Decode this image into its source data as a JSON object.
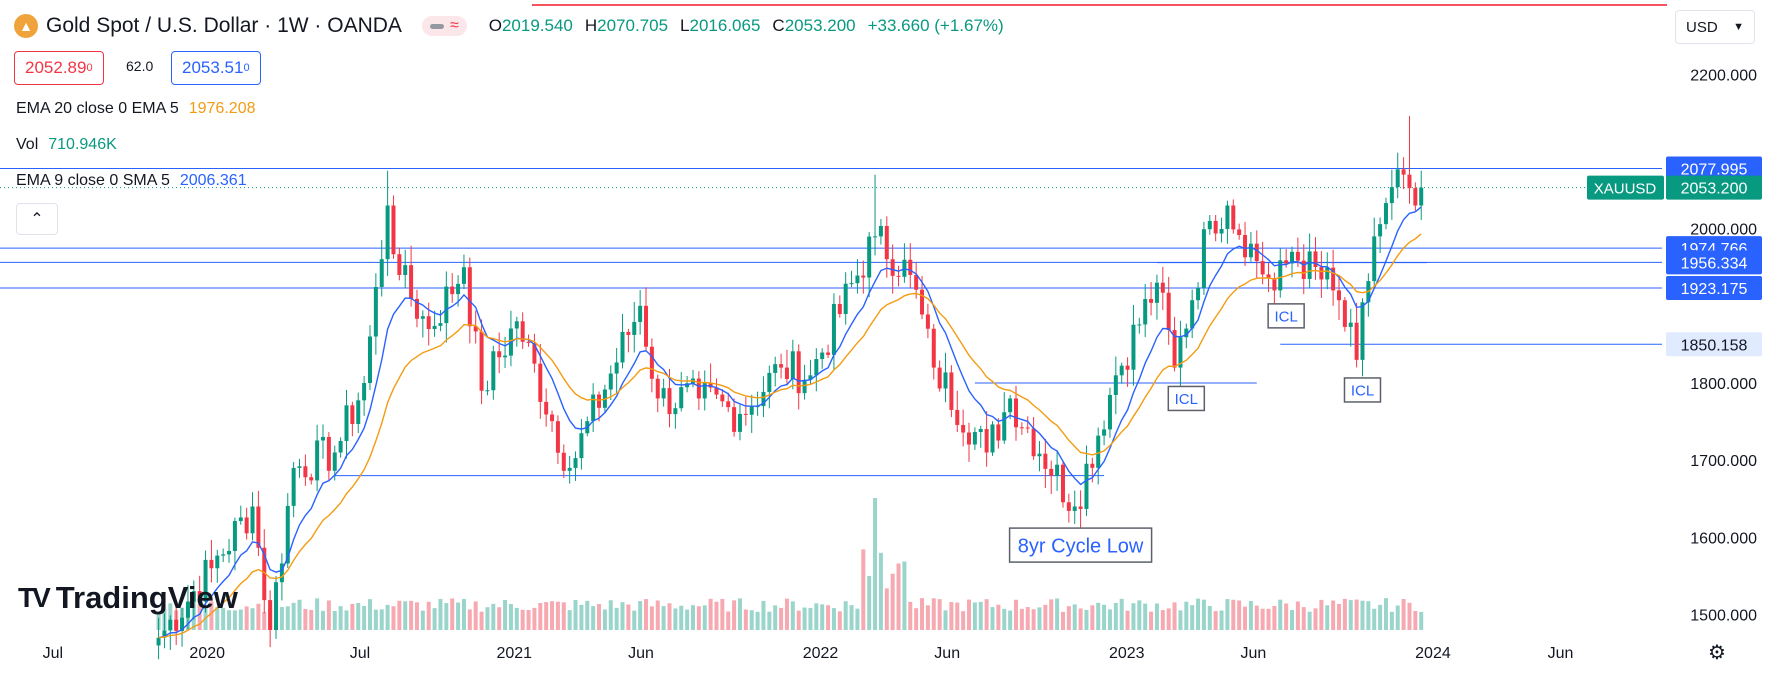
{
  "header": {
    "symbol_title": "Gold Spot / U.S. Dollar · 1W · OANDA",
    "logo_icon": "gold-coin-icon",
    "ohlc": [
      {
        "key": "O",
        "value": "2019.540"
      },
      {
        "key": "H",
        "value": "2070.705"
      },
      {
        "key": "L",
        "value": "2016.065"
      },
      {
        "key": "C",
        "value": "2053.200"
      }
    ],
    "change": "+33.660 (+1.67%)",
    "sell_price_main": "2052.89",
    "sell_price_sup": "0",
    "spread": "62.0",
    "buy_price_main": "2053.51",
    "buy_price_sup": "0"
  },
  "indicators": [
    {
      "label": "EMA 20 close 0 EMA 5",
      "value": "1976.208",
      "color": "#f39c12"
    },
    {
      "label": "Vol",
      "value": "710.946K",
      "color": "#089981"
    },
    {
      "label": "EMA 9 close 0 SMA 5",
      "value": "2006.361",
      "color": "#2962ff"
    }
  ],
  "currency": {
    "label": "USD",
    "icon": "chevron-down-icon"
  },
  "branding": {
    "name": "TradingView"
  },
  "colors": {
    "up": "#089981",
    "down": "#f23645",
    "ema_fast": "#2962ff",
    "ema_slow": "#f39c12",
    "hline": "#2962ff",
    "vol_up": "#9ad5cc",
    "vol_down": "#f6a9b0"
  },
  "chart_data": {
    "type": "candlestick",
    "title": "Gold Spot / U.S. Dollar · 1W · OANDA",
    "yaxis": {
      "ticks": [
        1500,
        1600,
        1700,
        1800,
        1900,
        2000,
        2100,
        2200
      ],
      "tick_labels": [
        "1500.000",
        "1600.000",
        "1700.000",
        "1800.000",
        "",
        "2000.000",
        "",
        "2200.000"
      ],
      "range": [
        1480,
        2225
      ]
    },
    "xaxis": {
      "ticks": [
        "2019-07",
        "2020-01",
        "2020-07",
        "2021-01",
        "2021-06",
        "2022-01",
        "2022-06",
        "2023-01",
        "2023-06",
        "2024-01",
        "2024-06"
      ],
      "tick_labels": [
        "Jul",
        "2020",
        "Jul",
        "2021",
        "Jun",
        "2022",
        "Jun",
        "2023",
        "Jun",
        "2024",
        "Jun"
      ],
      "range": [
        "2019-04-29",
        "2024-09-30"
      ]
    },
    "ohlc_anchors": [
      {
        "t": "2019-11-04",
        "c": 1470
      },
      {
        "t": "2020-01-06",
        "c": 1560
      },
      {
        "t": "2020-02-24",
        "c": 1640
      },
      {
        "t": "2020-03-16",
        "c": 1480
      },
      {
        "t": "2020-04-13",
        "c": 1690
      },
      {
        "t": "2020-06-01",
        "c": 1710
      },
      {
        "t": "2020-07-06",
        "c": 1800
      },
      {
        "t": "2020-08-03",
        "c": 2030
      },
      {
        "t": "2020-08-17",
        "c": 1940
      },
      {
        "t": "2020-09-21",
        "c": 1870
      },
      {
        "t": "2020-11-02",
        "c": 1950
      },
      {
        "t": "2020-11-23",
        "c": 1790
      },
      {
        "t": "2021-01-04",
        "c": 1880
      },
      {
        "t": "2021-03-08",
        "c": 1690
      },
      {
        "t": "2021-05-31",
        "c": 1900
      },
      {
        "t": "2021-06-21",
        "c": 1780
      },
      {
        "t": "2021-08-09",
        "c": 1780
      },
      {
        "t": "2021-09-27",
        "c": 1760
      },
      {
        "t": "2021-11-15",
        "c": 1820
      },
      {
        "t": "2021-12-20",
        "c": 1810
      },
      {
        "t": "2022-03-07",
        "c": 1990
      },
      {
        "t": "2022-04-18",
        "c": 1940
      },
      {
        "t": "2022-05-16",
        "c": 1820
      },
      {
        "t": "2022-07-18",
        "c": 1710
      },
      {
        "t": "2022-08-15",
        "c": 1780
      },
      {
        "t": "2022-10-31",
        "c": 1640
      },
      {
        "t": "2022-12-19",
        "c": 1810
      },
      {
        "t": "2023-02-06",
        "c": 1930
      },
      {
        "t": "2023-02-27",
        "c": 1820
      },
      {
        "t": "2023-04-10",
        "c": 2010
      },
      {
        "t": "2023-05-01",
        "c": 2030
      },
      {
        "t": "2023-06-26",
        "c": 1920
      },
      {
        "t": "2023-07-17",
        "c": 1970
      },
      {
        "t": "2023-09-04",
        "c": 1920
      },
      {
        "t": "2023-10-02",
        "c": 1830
      },
      {
        "t": "2023-10-23",
        "c": 1990
      },
      {
        "t": "2023-11-27",
        "c": 2070
      },
      {
        "t": "2023-12-11",
        "c": 2030
      },
      {
        "t": "2023-12-18",
        "c": 2053.2
      }
    ],
    "series": [
      {
        "name": "EMA 9 close 0 SMA 5",
        "type": "line",
        "color": "#2962ff",
        "last_value": 2006.361
      },
      {
        "name": "EMA 20 close 0 EMA 5",
        "type": "line",
        "color": "#f39c12",
        "last_value": 1976.208
      },
      {
        "name": "Vol",
        "type": "histogram",
        "last_value": "710.946K"
      }
    ],
    "horizontal_lines": [
      {
        "value": 2077.995,
        "label": "2077.995"
      },
      {
        "value": 1974.766,
        "label": "1974.766"
      },
      {
        "value": 1956.334,
        "label": "1956.334"
      },
      {
        "value": 1923.175,
        "label": "1923.175"
      },
      {
        "value": 1850.158,
        "label": "1850.158"
      }
    ],
    "level_segments": [
      {
        "from": "2020-06-01",
        "to": "2022-12-05",
        "value": 1680
      },
      {
        "from": "2022-07-04",
        "to": "2023-06-05",
        "value": 1800
      },
      {
        "from": "2023-02-06",
        "to": "2023-12-25",
        "value": 1956
      }
    ],
    "current_price": {
      "label": "XAUUSD",
      "value": "2053.200"
    },
    "annotations": [
      {
        "text": "8yr Cycle Low",
        "t": "2022-11-07",
        "y": 1590
      },
      {
        "text": "ICL",
        "t": "2023-03-13",
        "y": 1780
      },
      {
        "text": "ICL",
        "t": "2023-07-10",
        "y": 1887
      },
      {
        "text": "ICL",
        "t": "2023-10-09",
        "y": 1791
      }
    ]
  }
}
